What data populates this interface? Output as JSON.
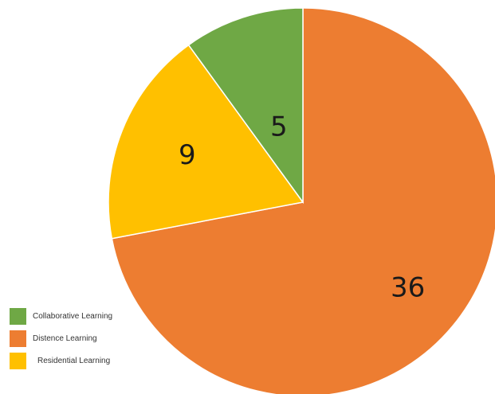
{
  "chart_data": {
    "type": "pie",
    "categories": [
      "Collaborative Learning",
      "Distence Learning",
      "Residential Learning"
    ],
    "values": [
      5,
      36,
      9
    ],
    "colors": [
      "#6fa845",
      "#ed7d31",
      "#ffc000"
    ],
    "start_angle_deg": 0,
    "direction": "clockwise",
    "data_labels": [
      "5",
      "36",
      "9"
    ],
    "legend": "bottom-left"
  }
}
